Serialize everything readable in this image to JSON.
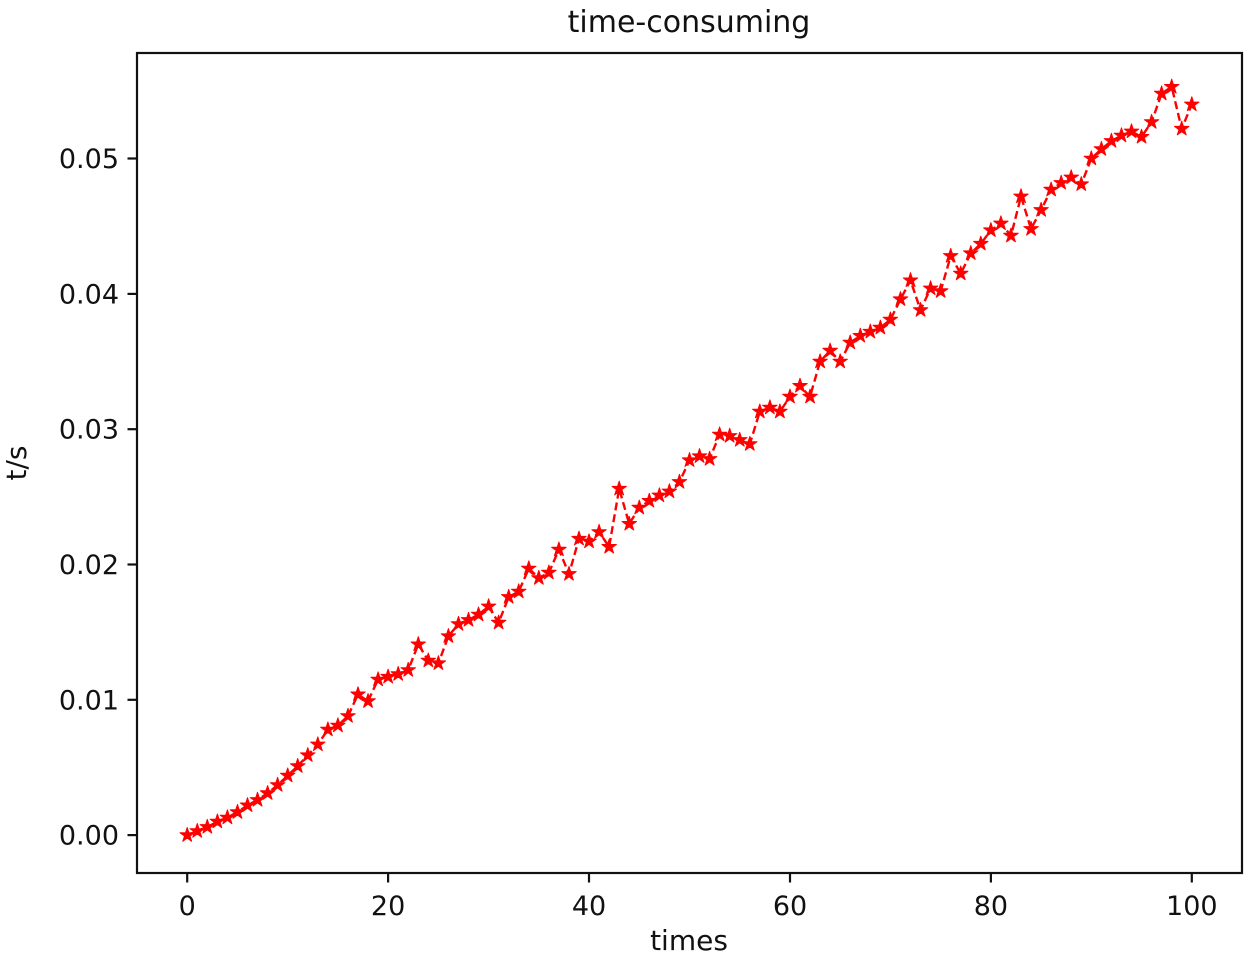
{
  "figure": {
    "title": "time-consuming",
    "xlabel": "times",
    "ylabel": "t/s"
  },
  "chart_data": {
    "type": "line",
    "title": "time-consuming",
    "xlabel": "times",
    "ylabel": "t/s",
    "legend": null,
    "grid": false,
    "line_style": "dashed",
    "marker": "star",
    "series_color": "#ff0000",
    "axis_color": "#111111",
    "xlim": [
      -5,
      105
    ],
    "ylim": [
      -0.0028,
      0.0578
    ],
    "x_ticks": [
      0,
      20,
      40,
      60,
      80,
      100
    ],
    "y_tick_labels": [
      "0.00",
      "0.01",
      "0.02",
      "0.03",
      "0.04",
      "0.05"
    ],
    "y_tick_values": [
      0.0,
      0.01,
      0.02,
      0.03,
      0.04,
      0.05
    ],
    "x": [
      0,
      1,
      2,
      3,
      4,
      5,
      6,
      7,
      8,
      9,
      10,
      11,
      12,
      13,
      14,
      15,
      16,
      17,
      18,
      19,
      20,
      21,
      22,
      23,
      24,
      25,
      26,
      27,
      28,
      29,
      30,
      31,
      32,
      33,
      34,
      35,
      36,
      37,
      38,
      39,
      40,
      41,
      42,
      43,
      44,
      45,
      46,
      47,
      48,
      49,
      50,
      51,
      52,
      53,
      54,
      55,
      56,
      57,
      58,
      59,
      60,
      61,
      62,
      63,
      64,
      65,
      66,
      67,
      68,
      69,
      70,
      71,
      72,
      73,
      74,
      75,
      76,
      77,
      78,
      79,
      80,
      81,
      82,
      83,
      84,
      85,
      86,
      87,
      88,
      89,
      90,
      91,
      92,
      93,
      94,
      95,
      96,
      97,
      98,
      99,
      100
    ],
    "y": [
      0.0,
      0.0003,
      0.0006,
      0.001,
      0.0013,
      0.0017,
      0.0022,
      0.0026,
      0.0031,
      0.0037,
      0.0044,
      0.0051,
      0.0059,
      0.0067,
      0.0078,
      0.0081,
      0.0088,
      0.0104,
      0.0099,
      0.0115,
      0.0117,
      0.0119,
      0.0122,
      0.0141,
      0.0129,
      0.0127,
      0.0147,
      0.0156,
      0.0159,
      0.0163,
      0.0169,
      0.0157,
      0.0176,
      0.018,
      0.0197,
      0.019,
      0.0194,
      0.0211,
      0.0193,
      0.0219,
      0.0217,
      0.0224,
      0.0213,
      0.0256,
      0.023,
      0.0242,
      0.0247,
      0.0251,
      0.0254,
      0.0261,
      0.0277,
      0.028,
      0.0278,
      0.0296,
      0.0295,
      0.0292,
      0.0289,
      0.0313,
      0.0316,
      0.0313,
      0.0324,
      0.0332,
      0.0324,
      0.035,
      0.0358,
      0.035,
      0.0364,
      0.0369,
      0.0372,
      0.0375,
      0.0381,
      0.0396,
      0.041,
      0.0388,
      0.0404,
      0.0402,
      0.0428,
      0.0415,
      0.043,
      0.0437,
      0.0447,
      0.0452,
      0.0443,
      0.0472,
      0.0448,
      0.0462,
      0.0477,
      0.0482,
      0.0486,
      0.0481,
      0.05,
      0.0507,
      0.0513,
      0.0517,
      0.052,
      0.0516,
      0.0527,
      0.0548,
      0.0553,
      0.0522,
      0.054
    ]
  }
}
